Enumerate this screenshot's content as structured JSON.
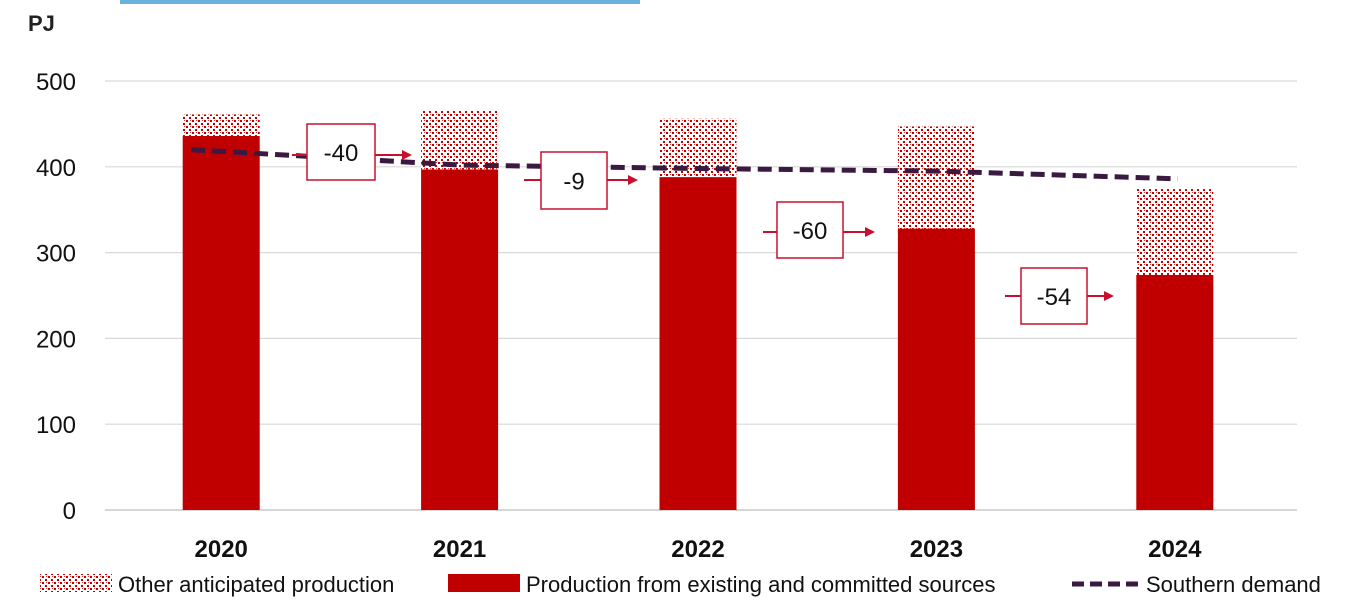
{
  "chart_data": {
    "type": "bar",
    "ylabel": "PJ",
    "ylim": [
      0,
      500
    ],
    "yticks": [
      0,
      100,
      200,
      300,
      400,
      500
    ],
    "categories": [
      "2020",
      "2021",
      "2022",
      "2023",
      "2024"
    ],
    "series": [
      {
        "name": "Production from existing and committed sources",
        "kind": "bar",
        "color": "#c00000",
        "values": [
          436,
          397,
          388,
          328,
          274
        ]
      },
      {
        "name": "Other anticipated production",
        "kind": "bar-stacked-pattern",
        "color": "#c00000",
        "values": [
          25,
          68,
          68,
          119,
          100
        ]
      },
      {
        "name": "Southern demand",
        "kind": "line-dashed",
        "color": "#3a1a40",
        "values": [
          420,
          402,
          398,
          395,
          386
        ]
      }
    ],
    "annotations": [
      {
        "label": "-40",
        "between": [
          "2020",
          "2021"
        ]
      },
      {
        "label": "-9",
        "between": [
          "2021",
          "2022"
        ]
      },
      {
        "label": "-60",
        "between": [
          "2022",
          "2023"
        ]
      },
      {
        "label": "-54",
        "between": [
          "2023",
          "2024"
        ]
      }
    ],
    "grid": true,
    "legend_position": "bottom"
  }
}
